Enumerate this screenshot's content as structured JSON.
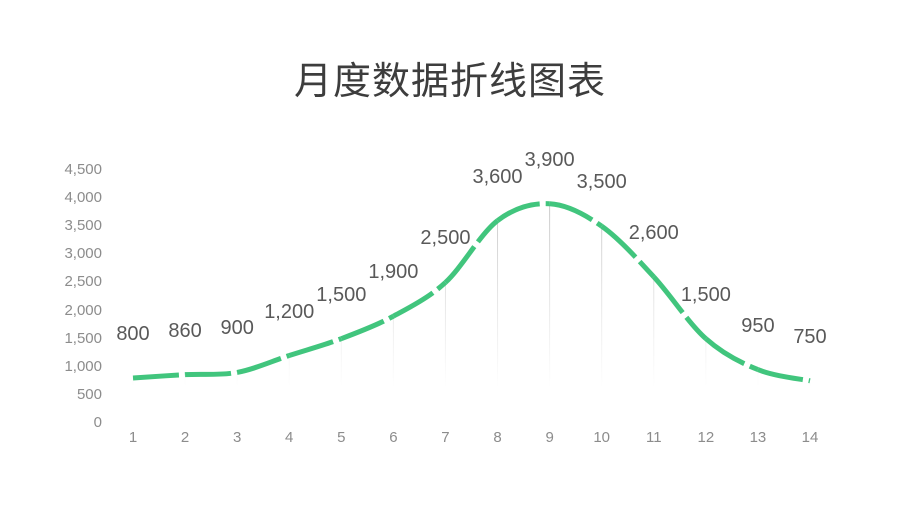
{
  "title": "月度数据折线图表",
  "colors": {
    "background": "#ffffff",
    "title": "#3d3d3d",
    "data_label": "#595959",
    "axis_tick": "#8c8c8c",
    "line": "#41c57d",
    "dropline": "#aaaaaa"
  },
  "chart_data": {
    "type": "line",
    "title": "月度数据折线图表",
    "x_labels": [
      "1",
      "2",
      "3",
      "4",
      "5",
      "6",
      "7",
      "8",
      "9",
      "10",
      "11",
      "12",
      "13",
      "14"
    ],
    "values": [
      800,
      860,
      900,
      1200,
      1500,
      1900,
      2500,
      3600,
      3900,
      3500,
      2600,
      1500,
      950,
      750
    ],
    "point_labels": [
      "800",
      "860",
      "900",
      "1,200",
      "1,500",
      "1,900",
      "2,500",
      "3,600",
      "3,900",
      "3,500",
      "2,600",
      "1,500",
      "950",
      "750"
    ],
    "y_tick_labels": [
      "0",
      "500",
      "1,000",
      "1,500",
      "2,000",
      "2,500",
      "3,000",
      "3,500",
      "4,000",
      "4,500"
    ],
    "ylim": [
      0,
      4500
    ],
    "xlabel": "",
    "ylabel": "",
    "legend": "none",
    "grid": "vertical-droplines-only",
    "line_style": "dashed",
    "smooth": true
  }
}
